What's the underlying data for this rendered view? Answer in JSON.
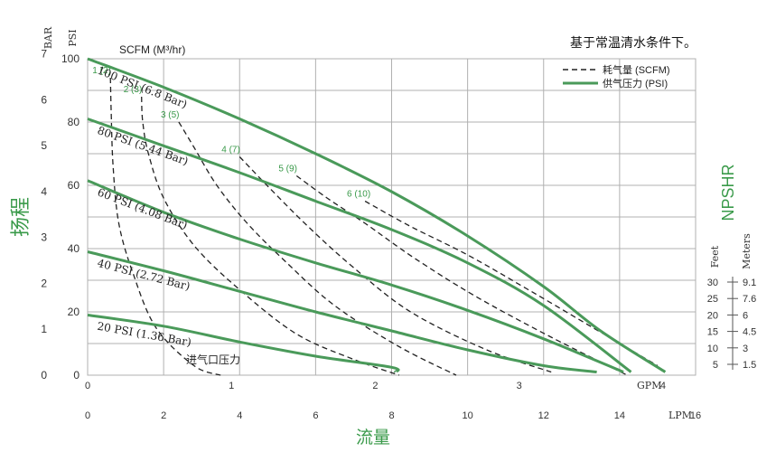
{
  "chart_data": {
    "type": "line",
    "title": "",
    "note": "基于常温清水条件下。",
    "legend": {
      "placement": "top-right",
      "entries": [
        {
          "label": "耗气量 (SCFM)",
          "style": "dashed"
        },
        {
          "label": "供气压力 (PSI)",
          "style": "solid"
        }
      ]
    },
    "colors": {
      "solid": "#4a9a5a",
      "dashed": "#222222",
      "grid": "#b0b0b0",
      "green_text": "#3a9a4a"
    },
    "left_axis": {
      "bar_label": "BAR",
      "psi_label": "PSI",
      "head_label": "扬程",
      "bar_ticks": [
        "0",
        "1",
        "2",
        "3",
        "4",
        "5",
        "6",
        "7"
      ],
      "psi_ticks": [
        "0",
        "20",
        "40",
        "60",
        "80",
        "100"
      ],
      "ylim_psi": [
        0,
        100
      ]
    },
    "bottom_axis": {
      "gpm_ticks": [
        "0",
        "1",
        "2",
        "3",
        "4"
      ],
      "gpm_unit": "GPM",
      "lpm_ticks": [
        "0",
        "2",
        "4",
        "6",
        "8",
        "10",
        "12",
        "14",
        "16"
      ],
      "lpm_unit": "LPM",
      "flow_label": "流量",
      "xlim_lpm": [
        0,
        16
      ]
    },
    "right_axis": {
      "npshr_label": "NPSHR",
      "feet_label": "Feet",
      "meters_label": "Meters",
      "feet_ticks": [
        "30",
        "25",
        "20",
        "15",
        "10",
        "5"
      ],
      "meters_ticks": [
        "9.1",
        "7.6",
        "6",
        "4.5",
        "3",
        "1.5"
      ]
    },
    "scfm_header": "SCFM (M³/hr)",
    "pressure_series": [
      {
        "name": "100 PSI (6.8 Bar)",
        "points": [
          [
            0,
            100
          ],
          [
            2,
            91
          ],
          [
            4,
            81
          ],
          [
            6,
            70
          ],
          [
            8,
            58
          ],
          [
            10,
            44
          ],
          [
            12,
            28
          ],
          [
            13.5,
            14
          ],
          [
            15.2,
            1
          ]
        ]
      },
      {
        "name": "80 PSI (5.44 Bar)",
        "points": [
          [
            0,
            81
          ],
          [
            2,
            72.5
          ],
          [
            4,
            64
          ],
          [
            6,
            55
          ],
          [
            8,
            46
          ],
          [
            10,
            35.5
          ],
          [
            12,
            22
          ],
          [
            14.3,
            1
          ]
        ]
      },
      {
        "name": "60 PSI (4.08 Bar)",
        "points": [
          [
            0,
            61.5
          ],
          [
            2,
            51.5
          ],
          [
            4,
            43
          ],
          [
            6,
            35.5
          ],
          [
            8,
            28.5
          ],
          [
            10,
            20.5
          ],
          [
            12,
            11.5
          ],
          [
            14.1,
            1
          ]
        ]
      },
      {
        "name": "40 PSI (2.72 Bar)",
        "points": [
          [
            0,
            39
          ],
          [
            2,
            33
          ],
          [
            4,
            26.5
          ],
          [
            6,
            20
          ],
          [
            8,
            14
          ],
          [
            10,
            8
          ],
          [
            12,
            3
          ],
          [
            13.4,
            1
          ]
        ]
      },
      {
        "name": "20 PSI (1.36 Bar)",
        "points": [
          [
            0,
            19
          ],
          [
            2,
            15.5
          ],
          [
            4,
            10.5
          ],
          [
            6,
            6
          ],
          [
            8,
            2.5
          ],
          [
            8.1,
            1
          ]
        ]
      }
    ],
    "air_series": [
      {
        "name": "1 (2)",
        "points": [
          [
            0.6,
            94
          ],
          [
            0.62,
            83
          ],
          [
            0.67,
            66
          ],
          [
            0.82,
            48
          ],
          [
            1.2,
            32
          ],
          [
            1.8,
            15
          ],
          [
            2.8,
            3
          ],
          [
            3.5,
            0
          ]
        ]
      },
      {
        "name": "2 (3)",
        "points": [
          [
            1.42,
            88
          ],
          [
            1.45,
            80
          ],
          [
            1.6,
            70
          ],
          [
            2.0,
            56
          ],
          [
            2.8,
            41
          ],
          [
            4.0,
            27
          ],
          [
            5.5,
            13
          ],
          [
            7.0,
            5
          ],
          [
            8.2,
            0
          ]
        ]
      },
      {
        "name": "3 (5)",
        "points": [
          [
            2.4,
            80
          ],
          [
            2.8,
            72
          ],
          [
            3.4,
            60
          ],
          [
            4.2,
            48
          ],
          [
            5.2,
            36
          ],
          [
            6.5,
            22
          ],
          [
            8.2,
            9
          ],
          [
            9.7,
            0
          ]
        ]
      },
      {
        "name": "4 (7)",
        "points": [
          [
            4.0,
            69
          ],
          [
            4.8,
            59
          ],
          [
            5.8,
            47
          ],
          [
            7.0,
            34
          ],
          [
            8.5,
            20
          ],
          [
            10.5,
            8
          ],
          [
            12.2,
            1
          ]
        ]
      },
      {
        "name": "5 (9)",
        "points": [
          [
            5.5,
            63
          ],
          [
            6.3,
            56
          ],
          [
            7.3,
            48
          ],
          [
            8.6,
            37
          ],
          [
            10.2,
            25
          ],
          [
            12.2,
            12
          ],
          [
            14.2,
            0
          ]
        ]
      },
      {
        "name": "6 (10)",
        "points": [
          [
            7.3,
            55
          ],
          [
            8.5,
            47
          ],
          [
            10.0,
            38
          ],
          [
            11.6,
            27
          ],
          [
            13.3,
            15
          ],
          [
            15.0,
            3
          ]
        ]
      }
    ],
    "annotations": {
      "air_inlet_pressure": "进气口压力"
    }
  }
}
